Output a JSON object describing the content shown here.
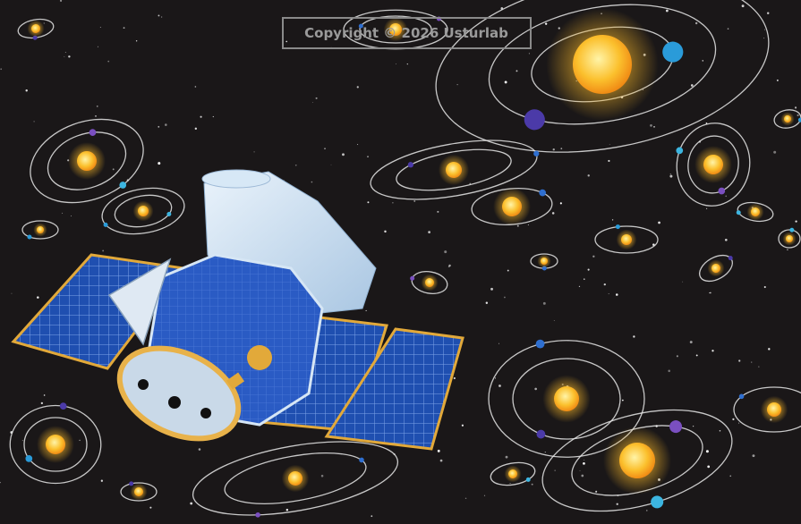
{
  "watermark": {
    "text": "Copyright © 2026 Usturlab"
  }
}
